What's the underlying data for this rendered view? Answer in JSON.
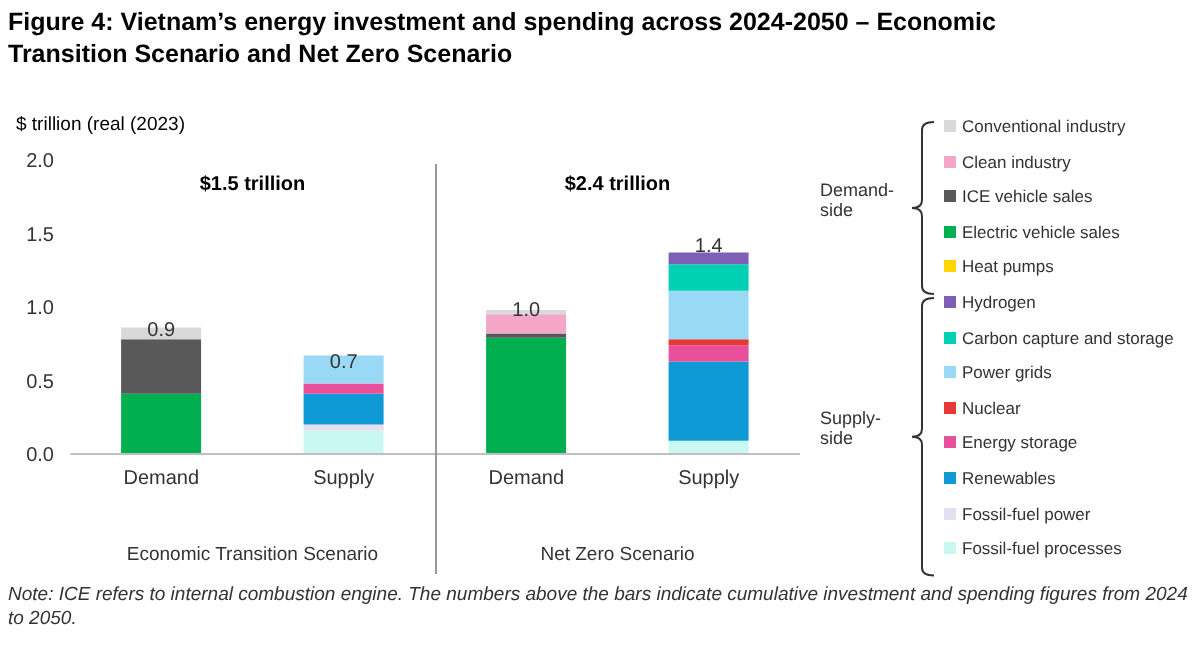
{
  "chart_data": {
    "type": "bar",
    "title": "Figure 4: Vietnam’s energy investment and spending across 2024-2050 – Economic Transition Scenario and Net Zero Scenario",
    "ylabel": "$ trillion (real (2023)",
    "categories": [
      "Demand",
      "Supply",
      "Demand",
      "Supply"
    ],
    "stacked": true,
    "ylim": [
      0,
      2
    ],
    "yticks": [
      {
        "value": 0,
        "label": "0.0"
      },
      {
        "value": 0.5,
        "label": "0.5"
      },
      {
        "value": 1,
        "label": "1.0"
      },
      {
        "value": 1.5,
        "label": "1.5"
      },
      {
        "value": 2,
        "label": "2.0"
      }
    ],
    "grid": false,
    "legend": "right",
    "totals": [
      "0.9",
      "0.7",
      "1.0",
      "1.4"
    ],
    "series": [
      {
        "name": "Fossil-fuel processes",
        "color": "#c9f7f1",
        "values": [
          0,
          0.16,
          0,
          0.09
        ]
      },
      {
        "name": "Fossil-fuel power",
        "color": "#e4e0f0",
        "values": [
          0,
          0.04,
          0,
          null
        ]
      },
      {
        "name": "Renewables",
        "color": "#0f9ad6",
        "values": [
          0,
          0.21,
          0,
          0.54
        ]
      },
      {
        "name": "Energy storage",
        "color": "#e94f9b",
        "values": [
          0,
          0.07,
          0,
          0.11
        ]
      },
      {
        "name": "Nuclear",
        "color": "#e53935",
        "values": [
          0,
          0,
          0,
          0.04
        ]
      },
      {
        "name": "Power grids",
        "color": "#99d9f5",
        "values": [
          0,
          0.19,
          0,
          0.33
        ]
      },
      {
        "name": "Carbon capture and storage",
        "color": "#00d1b2",
        "values": [
          0,
          0,
          0,
          0.18
        ]
      },
      {
        "name": "Hydrogen",
        "color": "#7f5fb5",
        "values": [
          0,
          0,
          0,
          0.08
        ]
      },
      {
        "name": "Heat pumps",
        "color": "#ffd400",
        "values": [
          0,
          0,
          0,
          0
        ]
      },
      {
        "name": "Electric vehicle sales",
        "color": "#00b050",
        "values": [
          0.41,
          0,
          0.79,
          0
        ]
      },
      {
        "name": "ICE vehicle sales",
        "color": "#595959",
        "values": [
          0.37,
          0,
          0.03,
          0
        ]
      },
      {
        "name": "Clean industry",
        "color": "#f4a6c8",
        "values": [
          0,
          0,
          0.13,
          0
        ]
      },
      {
        "name": "Conventional industry",
        "color": "#d9d9d9",
        "values": [
          0.08,
          0,
          0.03,
          0
        ]
      }
    ],
    "annotations": [
      "$1.5 trillion",
      "$2.4 trillion",
      "Economic Transition Scenario",
      "Net Zero Scenario",
      "Demand-side",
      "Supply-side",
      "Note: ICE refers to internal combustion engine. The numbers above the bars indicate cumulative investment and spending figures from 2024 to 2050."
    ]
  }
}
